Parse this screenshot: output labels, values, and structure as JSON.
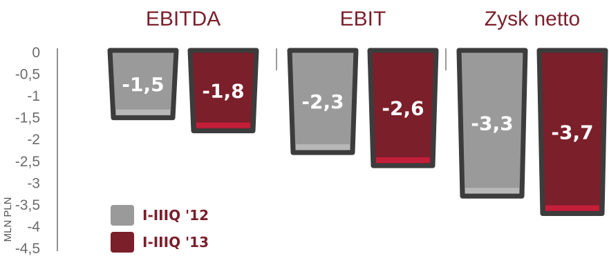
{
  "chart_data": {
    "type": "bar",
    "categories": [
      "EBITDA",
      "EBIT",
      "Zysk netto"
    ],
    "series": [
      {
        "name": "I-IIIQ '12",
        "values": [
          -1.5,
          -2.3,
          -3.3
        ],
        "labels": [
          "-1,5",
          "-2,3",
          "-3,3"
        ]
      },
      {
        "name": "I-IIIQ '13",
        "values": [
          -1.8,
          -2.6,
          -3.7
        ],
        "labels": [
          "-1,8",
          "-2,6",
          "-3,7"
        ]
      }
    ],
    "ylabel": "MLN PLN",
    "ylim": [
      -4.5,
      0
    ],
    "yticks": [
      0,
      -0.5,
      -1,
      -1.5,
      -2,
      -2.5,
      -3,
      -3.5,
      -4,
      -4.5
    ],
    "ytick_labels": [
      "0",
      "-0,5",
      "-1",
      "-1,5",
      "-2",
      "-2,5",
      "-3",
      "-3,5",
      "-4",
      "-4,5"
    ],
    "grid": false,
    "legend": "bottom-left",
    "colors": {
      "series_fills": [
        "#9a9a9a",
        "#7b1f2b"
      ],
      "series_base_accents": [
        "#b8b8b8",
        "#c41e3a"
      ],
      "bar_outline": "#3c3c3c",
      "category_title": "#7b1f2b",
      "axis": "#6b6b6b"
    }
  }
}
